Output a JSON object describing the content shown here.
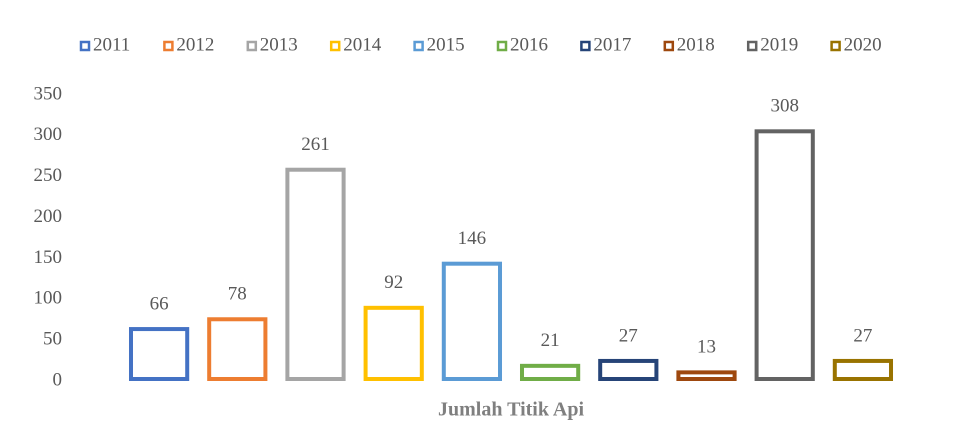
{
  "chart_data": {
    "type": "bar",
    "categories": [
      "Jumlah Titik Api"
    ],
    "series": [
      {
        "name": "2011",
        "color": "#4472c4",
        "values": [
          66
        ]
      },
      {
        "name": "2012",
        "color": "#ed7d31",
        "values": [
          78
        ]
      },
      {
        "name": "2013",
        "color": "#a5a5a5",
        "values": [
          261
        ]
      },
      {
        "name": "2014",
        "color": "#ffc000",
        "values": [
          92
        ]
      },
      {
        "name": "2015",
        "color": "#5b9bd5",
        "values": [
          146
        ]
      },
      {
        "name": "2016",
        "color": "#70ad47",
        "values": [
          21
        ]
      },
      {
        "name": "2017",
        "color": "#264478",
        "values": [
          27
        ]
      },
      {
        "name": "2018",
        "color": "#9e480e",
        "values": [
          13
        ]
      },
      {
        "name": "2019",
        "color": "#636363",
        "values": [
          308
        ]
      },
      {
        "name": "2020",
        "color": "#997300",
        "values": [
          27
        ]
      }
    ],
    "ylim": [
      0,
      350
    ],
    "yticks": [
      0,
      50,
      100,
      150,
      200,
      250,
      300,
      350
    ],
    "legend": "top",
    "grid": false
  }
}
